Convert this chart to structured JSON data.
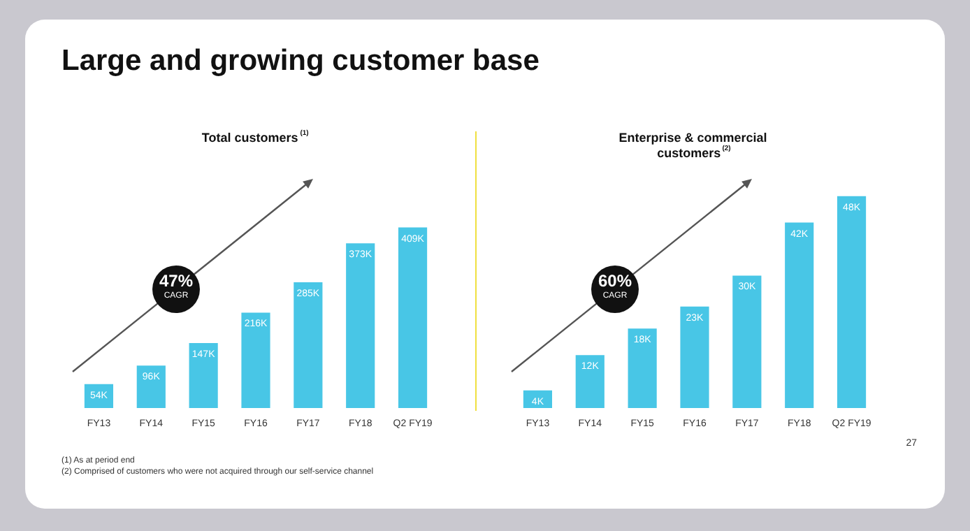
{
  "chart_data": [
    {
      "type": "bar",
      "title": "Total customers$^{(1)}$",
      "categories": [
        "FY13",
        "FY14",
        "FY15",
        "FY16",
        "FY17",
        "FY18",
        "Q2 FY19"
      ],
      "values": [
        54,
        96,
        147,
        216,
        285,
        373,
        409
      ],
      "value_labels": [
        "54K",
        "96K",
        "147K",
        "216K",
        "285K",
        "373K",
        "409K"
      ],
      "color": "#48c6e6",
      "annotations": [
        "Large and growing customer base",
        "47%",
        "CAGR",
        "(1) As at period end",
        "(2) Comprised of customers who were not acquired through our self-service channel"
      ]
    },
    {
      "type": "bar",
      "title": "Enterprise & commercial customers$^{(2)}$",
      "categories": [
        "FY13",
        "FY14",
        "FY15",
        "FY16",
        "FY17",
        "FY18",
        "Q2 FY19"
      ],
      "values": [
        4,
        12,
        18,
        23,
        30,
        42,
        48
      ],
      "value_labels": [
        "4K",
        "12K",
        "18K",
        "23K",
        "30K",
        "42K",
        "48K"
      ],
      "color": "#48c6e6",
      "annotations": [
        "60%",
        "CAGR",
        "27"
      ]
    }
  ]
}
